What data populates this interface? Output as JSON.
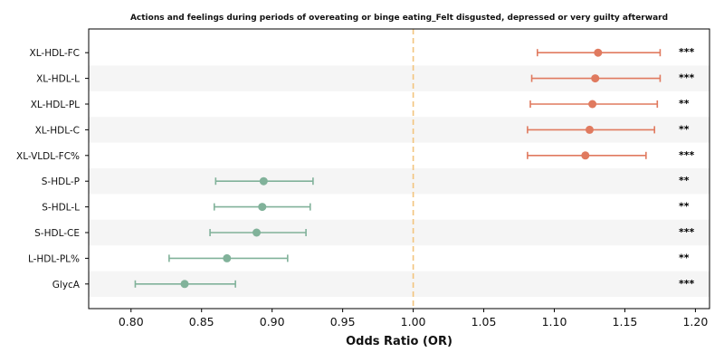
{
  "chart_data": {
    "type": "forest",
    "title": "Actions and feelings during periods of overeating or binge eating_Felt disgusted, depressed or very guilty afterward",
    "xlabel": "Odds Ratio (OR)",
    "ylabel": "",
    "xlim": [
      0.77,
      1.21
    ],
    "xticks": [
      "0.80",
      "0.85",
      "0.90",
      "0.95",
      "1.00",
      "1.05",
      "1.10",
      "1.15",
      "1.20"
    ],
    "xtick_values": [
      0.8,
      0.85,
      0.9,
      0.95,
      1.0,
      1.05,
      1.1,
      1.15,
      1.2
    ],
    "reference_line": 1.0,
    "grid": false,
    "alternating_row_shading": true,
    "colors": {
      "positive": "#e07a5f",
      "negative": "#81b29a",
      "reference": "#f2c47d",
      "row_shade": "#f5f5f5"
    },
    "rows": [
      {
        "label": "XL-HDL-FC",
        "or": 1.131,
        "lo": 1.088,
        "hi": 1.175,
        "sig": "***"
      },
      {
        "label": "XL-HDL-L",
        "or": 1.129,
        "lo": 1.084,
        "hi": 1.175,
        "sig": "***"
      },
      {
        "label": "XL-HDL-PL",
        "or": 1.127,
        "lo": 1.083,
        "hi": 1.173,
        "sig": "**"
      },
      {
        "label": "XL-HDL-C",
        "or": 1.125,
        "lo": 1.081,
        "hi": 1.171,
        "sig": "**"
      },
      {
        "label": "XL-VLDL-FC%",
        "or": 1.122,
        "lo": 1.081,
        "hi": 1.165,
        "sig": "***"
      },
      {
        "label": "S-HDL-P",
        "or": 0.894,
        "lo": 0.86,
        "hi": 0.929,
        "sig": "**"
      },
      {
        "label": "S-HDL-L",
        "or": 0.893,
        "lo": 0.859,
        "hi": 0.927,
        "sig": "**"
      },
      {
        "label": "S-HDL-CE",
        "or": 0.889,
        "lo": 0.856,
        "hi": 0.924,
        "sig": "***"
      },
      {
        "label": "L-HDL-PL%",
        "or": 0.868,
        "lo": 0.827,
        "hi": 0.911,
        "sig": "**"
      },
      {
        "label": "GlycA",
        "or": 0.838,
        "lo": 0.803,
        "hi": 0.874,
        "sig": "***"
      }
    ]
  }
}
